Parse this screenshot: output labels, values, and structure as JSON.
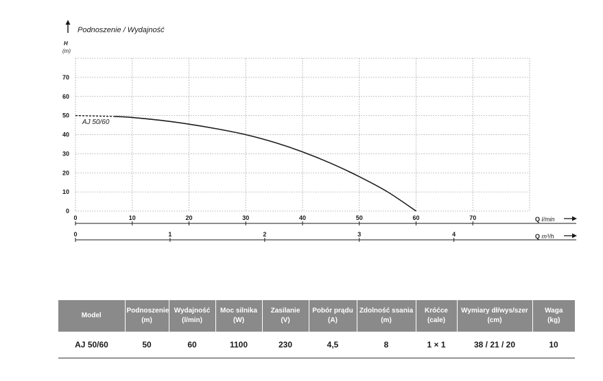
{
  "chart_data": {
    "type": "line",
    "title": "Podnoszenie / Wydajność",
    "ylabel": "H",
    "yunit": "(m)",
    "ylim": [
      0,
      80
    ],
    "yticks": [
      "70",
      "60",
      "50",
      "40",
      "30",
      "20",
      "10",
      "0"
    ],
    "ytick_values": [
      70,
      60,
      50,
      40,
      30,
      20,
      10,
      0
    ],
    "x_axis_primary": {
      "label": "Q l/min",
      "label_bold": "Q",
      "label_rest": "l/min",
      "lim": [
        0,
        80
      ],
      "ticks": [
        "0",
        "10",
        "20",
        "30",
        "40",
        "50",
        "60",
        "70"
      ],
      "tick_values": [
        0,
        10,
        20,
        30,
        40,
        50,
        60,
        70
      ]
    },
    "x_axis_secondary": {
      "label": "Q m³/h",
      "label_bold": "Q",
      "label_rest": "m³/h",
      "ticks": [
        "0",
        "1",
        "2",
        "3",
        "4"
      ],
      "tick_values": [
        0,
        1,
        2,
        3,
        4
      ]
    },
    "grid": true,
    "series": [
      {
        "name": "AJ 50/60",
        "dashed_to_x": 7,
        "x": [
          0,
          7,
          10,
          15,
          20,
          25,
          30,
          35,
          40,
          45,
          50,
          55,
          60
        ],
        "y": [
          50,
          49.5,
          49,
          47.5,
          45.5,
          43,
          40,
          36,
          31,
          25,
          18,
          10,
          0
        ]
      }
    ]
  },
  "table": {
    "headers": [
      [
        "Model"
      ],
      [
        "Podnoszenie",
        "(m)"
      ],
      [
        "Wydajność",
        "(l/min)"
      ],
      [
        "Moc silnika",
        "(W)"
      ],
      [
        "Zasilanie",
        "(V)"
      ],
      [
        "Pobór prądu",
        "(A)"
      ],
      [
        "Zdolność ssania",
        "(m)"
      ],
      [
        "Króćce",
        "(cale)"
      ],
      [
        "Wymiary dł/wys/szer",
        "(cm)"
      ],
      [
        "Waga",
        "(kg)"
      ]
    ],
    "rows": [
      [
        "AJ 50/60",
        "50",
        "60",
        "1100",
        "230",
        "4,5",
        "8",
        "1 × 1",
        "38 / 21 / 20",
        "10"
      ]
    ]
  }
}
